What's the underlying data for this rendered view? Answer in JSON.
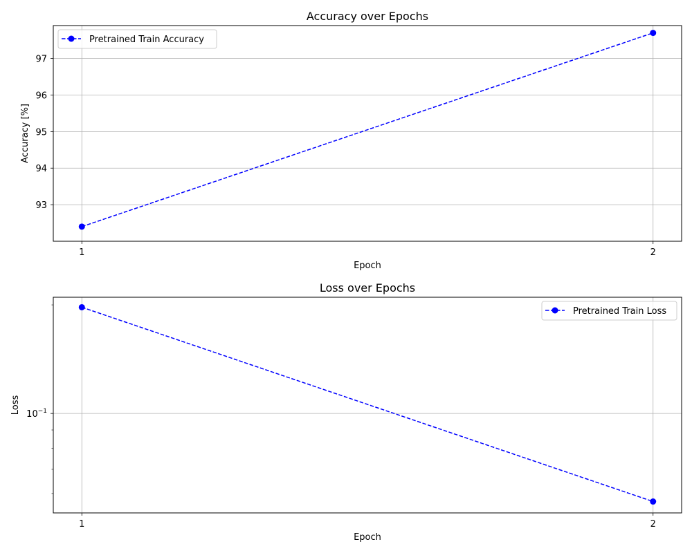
{
  "chart_data": [
    {
      "type": "line",
      "title": "Accuracy over Epochs",
      "xlabel": "Epoch",
      "ylabel": "Accuracy [%]",
      "x": [
        1,
        2
      ],
      "xticks": [
        "1",
        "2"
      ],
      "yticks": [
        "93",
        "94",
        "95",
        "96",
        "97"
      ],
      "ylim": [
        92.0,
        97.9
      ],
      "grid": true,
      "legend": "upper-left",
      "series": [
        {
          "name": "Pretrained Train Accuracy",
          "values": [
            92.4,
            97.7
          ],
          "color": "#0000ff",
          "linestyle": "dashed",
          "marker": "circle"
        }
      ]
    },
    {
      "type": "line",
      "title": "Loss over Epochs",
      "xlabel": "Epoch",
      "ylabel": "Loss",
      "yscale": "log",
      "x": [
        1,
        2
      ],
      "xticks": [
        "1",
        "2"
      ],
      "ytick_labels": [
        {
          "value": 0.1,
          "base": "10",
          "exp": "−1"
        }
      ],
      "ylim": [
        0.053,
        0.21
      ],
      "grid": true,
      "legend": "upper-right",
      "series": [
        {
          "name": "Pretrained Train Loss",
          "values": [
            0.197,
            0.057
          ],
          "color": "#0000ff",
          "linestyle": "dashed",
          "marker": "circle"
        }
      ]
    }
  ]
}
